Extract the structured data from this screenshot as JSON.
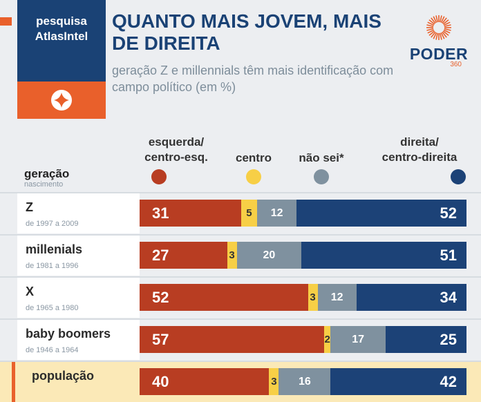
{
  "brand": {
    "line1": "pesquisa",
    "line2": "AtlasIntel"
  },
  "title": "QUANTO MAIS JOVEM, MAIS DE DIREITA",
  "subtitle": "geração Z e millennials têm mais identificação com campo político (em %)",
  "logo": {
    "name": "PODER",
    "number": "360"
  },
  "colors": {
    "esquerda": "#b83d22",
    "centro": "#f7cf46",
    "nao_sei": "#7f919f",
    "direita": "#1c4277",
    "navy": "#1a4275",
    "orange": "#e9602b"
  },
  "chart_data": {
    "type": "bar",
    "stacked": true,
    "orientation": "horizontal",
    "row_header": "geração",
    "row_subheader": "nascimento",
    "legend": [
      {
        "line1": "esquerda/",
        "line2": "centro-esq."
      },
      {
        "line1": "",
        "line2": "centro"
      },
      {
        "line1": "",
        "line2": "não sei*"
      },
      {
        "line1": "direita/",
        "line2": "centro-direita"
      }
    ],
    "categories": [
      {
        "name": "Z",
        "sub": "de 1997 a 2009"
      },
      {
        "name": "millenials",
        "sub": "de 1981 a 1996"
      },
      {
        "name": "X",
        "sub": "de 1965 a 1980"
      },
      {
        "name": "baby boomers",
        "sub": "de 1946 a 1964"
      },
      {
        "name": "população",
        "sub": ""
      }
    ],
    "series": [
      {
        "name": "esquerda/centro-esq.",
        "values": [
          31,
          27,
          52,
          57,
          40
        ]
      },
      {
        "name": "centro",
        "values": [
          5,
          3,
          3,
          2,
          3
        ]
      },
      {
        "name": "não sei*",
        "values": [
          12,
          20,
          12,
          17,
          16
        ]
      },
      {
        "name": "direita/centro-direita",
        "values": [
          52,
          51,
          34,
          25,
          42
        ]
      }
    ]
  }
}
